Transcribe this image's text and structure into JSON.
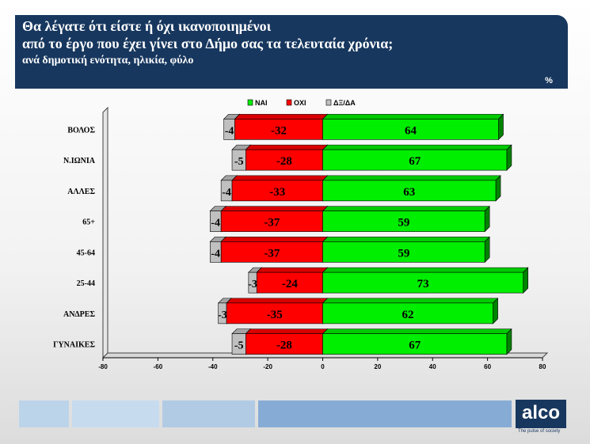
{
  "header": {
    "title_line1": "Θα λέγατε ότι είστε ή όχι ικανοποιημένοι",
    "title_line2": "από το έργο που έχει γίνει στο Δήμο σας τα τελευταία χρόνια;",
    "subtitle": "ανά δημοτική ενότητα, ηλικία, φύλο"
  },
  "unit_badge": "%",
  "footer": {
    "logo": "alco",
    "tagline": "The pulse of society"
  },
  "chart_data": {
    "type": "bar",
    "orientation": "horizontal",
    "stacked": true,
    "categories": [
      "ΒΟΛΟΣ",
      "Ν.ΙΩΝΙΑ",
      "ΑΛΛΕΣ",
      "65+",
      "45-64",
      "25-44",
      "ΑΝΔΡΕΣ",
      "ΓΥΝΑΙΚΕΣ"
    ],
    "series": [
      {
        "name": "ΝΑΙ",
        "color": "#00ee00",
        "values": [
          64,
          67,
          63,
          59,
          59,
          73,
          62,
          67
        ]
      },
      {
        "name": "ΟΧΙ",
        "color": "#ff0000",
        "values": [
          -32,
          -28,
          -33,
          -37,
          -37,
          -24,
          -35,
          -28
        ]
      },
      {
        "name": "ΔΞ/ΔΑ",
        "color": "#c0c0c0",
        "values": [
          -4,
          -5,
          -4,
          -4,
          -4,
          -3,
          -3,
          -5
        ]
      }
    ],
    "xlim": [
      -80,
      80
    ],
    "xticks": [
      "-80",
      "-60",
      "-40",
      "-20",
      "0",
      "20",
      "40",
      "60",
      "80"
    ],
    "legend_position": "top",
    "grid": false
  }
}
